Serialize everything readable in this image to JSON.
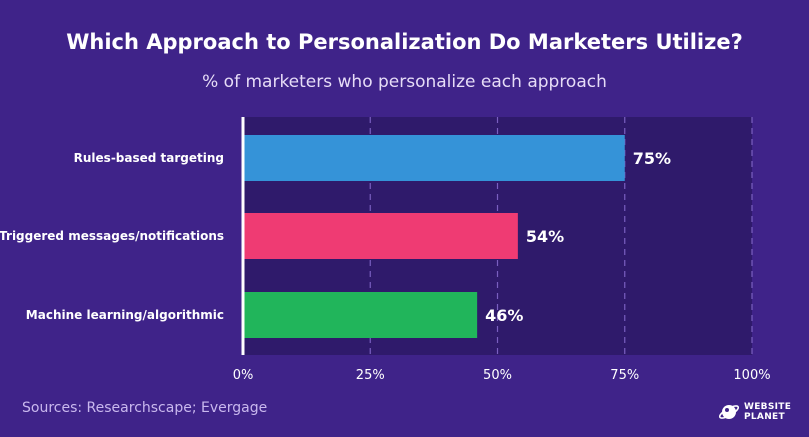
{
  "title": "Which Approach to Personalization Do Marketers Utilize?",
  "subtitle": "% of marketers who personalize each approach",
  "source": "Sources: Researchscape; Evergage",
  "logo": {
    "line1": "WEBSITE",
    "line2": "PLANET",
    "icon": "planet-icon"
  },
  "colors": {
    "background": "#3f2389",
    "plot_background": "#2f1a6b",
    "grid": "#7a5fc0"
  },
  "chart_data": {
    "type": "bar",
    "orientation": "horizontal",
    "categories": [
      "Rules-based targeting",
      "Triggered messages/notifications",
      "Machine learning/algorithmic"
    ],
    "values": [
      75,
      54,
      46
    ],
    "value_labels": [
      "75%",
      "54%",
      "46%"
    ],
    "bar_colors": [
      "#3593d8",
      "#ef3b73",
      "#21b55b"
    ],
    "xlim": [
      0,
      100
    ],
    "xticks": [
      0,
      25,
      50,
      75,
      100
    ],
    "xtick_labels": [
      "0%",
      "25%",
      "50%",
      "75%",
      "100%"
    ],
    "grid": true,
    "legend": "none"
  }
}
